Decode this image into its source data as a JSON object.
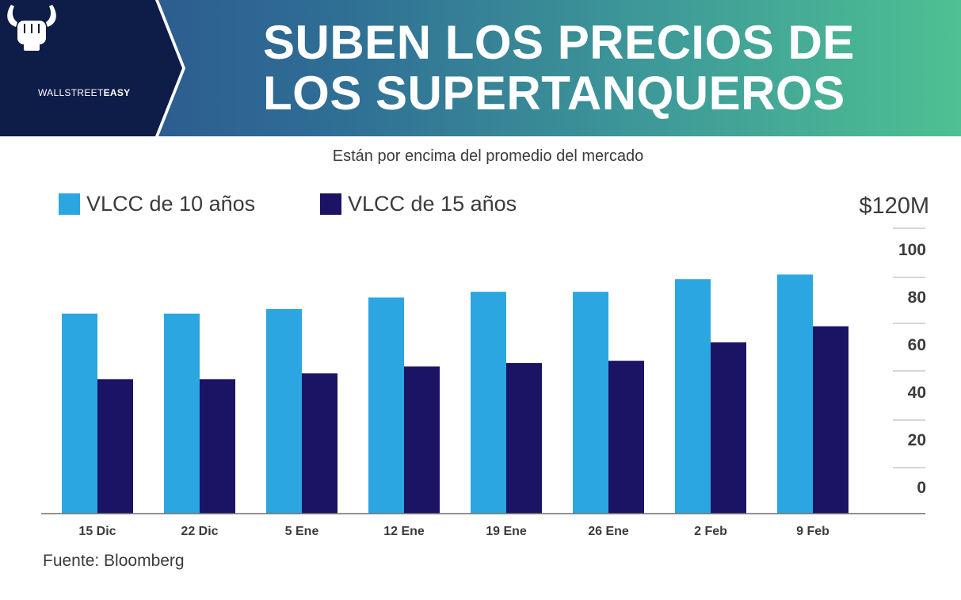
{
  "brand": {
    "name_light": "WALLSTREET",
    "name_bold": "EASY"
  },
  "header": {
    "title_line1": "SUBEN LOS PRECIOS DE",
    "title_line2": "LOS SUPERTANQUEROS"
  },
  "colors": {
    "series1": "#2ca6e0",
    "series2": "#1b1464",
    "brand_panel": "#0e1c48"
  },
  "chart_data": {
    "type": "bar",
    "title": "SUBEN LOS PRECIOS DE LOS SUPERTANQUEROS",
    "subtitle": "Están por encima del promedio del mercado",
    "unit_label": "$120M",
    "categories": [
      "15 Dic",
      "22 Dic",
      "5 Ene",
      "12 Ene",
      "19 Ene",
      "26 Ene",
      "2 Feb",
      "9 Feb"
    ],
    "series": [
      {
        "name": "VLCC de 10 años",
        "values": [
          87,
          87,
          89,
          94,
          96.5,
          96.5,
          102,
          104
        ]
      },
      {
        "name": "VLCC de 15 años",
        "values": [
          58.5,
          58.5,
          61,
          64,
          65.5,
          66.5,
          74.5,
          81.5
        ]
      }
    ],
    "y_ticks": [
      "0",
      "20",
      "40",
      "60",
      "80",
      "100"
    ],
    "ylim": [
      0,
      120
    ],
    "yaxis_position": "right",
    "legend_position": "top-left",
    "source": "Fuente: Bloomberg"
  }
}
